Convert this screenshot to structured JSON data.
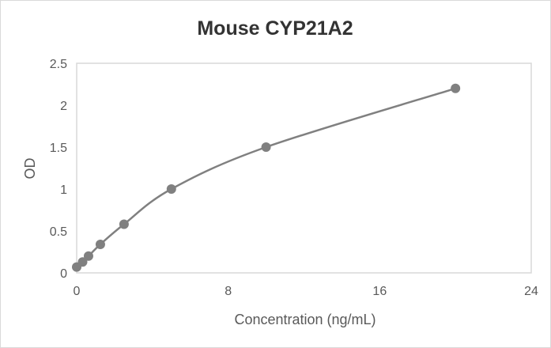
{
  "chart_data": {
    "type": "scatter",
    "title": "Mouse CYP21A2",
    "xlabel": "Concentration (ng/mL)",
    "ylabel": "OD",
    "xlim": [
      0,
      24
    ],
    "ylim": [
      0,
      2.5
    ],
    "x_ticks": [
      "0",
      "8",
      "16",
      "24"
    ],
    "y_ticks": [
      "0",
      "0.5",
      "1",
      "1.5",
      "2",
      "2.5"
    ],
    "grid": false,
    "legend": "none",
    "series": [
      {
        "name": "Mouse CYP21A2",
        "color": "#808080",
        "smoothed_line": true,
        "x": [
          0,
          0.3125,
          0.625,
          1.25,
          2.5,
          5,
          10,
          20
        ],
        "y": [
          0.07,
          0.13,
          0.2,
          0.34,
          0.58,
          1.0,
          1.5,
          2.2
        ]
      }
    ]
  }
}
